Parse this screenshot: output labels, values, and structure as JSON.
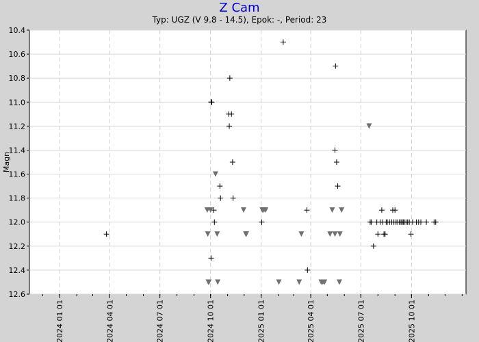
{
  "chart_data": {
    "type": "scatter",
    "title": "Z Cam",
    "subtitle": "Typ: UGZ (V 9.8 - 14.5), Epok: -, Period: 23",
    "ylabel": "Magn",
    "xlabel": "",
    "y_inverted": true,
    "ylim": [
      10.4,
      12.6
    ],
    "xlim": [
      "2023-11-07",
      "2026-01-08"
    ],
    "grid": true,
    "y_ticks": [
      "10.4",
      "10.6",
      "10.8",
      "11.0",
      "11.2",
      "11.4",
      "11.6",
      "11.8",
      "12.0",
      "12.2",
      "12.4",
      "12.6"
    ],
    "x_ticks": [
      {
        "date": "2024-01-01",
        "label": "2024 01 01"
      },
      {
        "date": "2024-04-01",
        "label": "2024 04 01"
      },
      {
        "date": "2024-07-01",
        "label": "2024 07 01"
      },
      {
        "date": "2024-10-01",
        "label": "2024 10 01"
      },
      {
        "date": "2025-01-01",
        "label": "2025 01 01"
      },
      {
        "date": "2025-04-01",
        "label": "2025 04 01"
      },
      {
        "date": "2025-07-01",
        "label": "2025 07 01"
      },
      {
        "date": "2025-10-01",
        "label": "2025 10 01"
      }
    ],
    "series": [
      {
        "marker": "plus",
        "color": "#000000",
        "points": [
          [
            "2024-03-26",
            12.1
          ],
          [
            "2024-10-02",
            11.0
          ],
          [
            "2024-10-03",
            11.0
          ],
          [
            "2024-10-02",
            12.3
          ],
          [
            "2024-10-07",
            11.9
          ],
          [
            "2024-10-08",
            12.0
          ],
          [
            "2024-10-18",
            11.7
          ],
          [
            "2024-10-19",
            11.8
          ],
          [
            "2024-11-03",
            11.1
          ],
          [
            "2024-11-04",
            11.2
          ],
          [
            "2024-11-05",
            10.8
          ],
          [
            "2024-11-08",
            11.1
          ],
          [
            "2024-11-10",
            11.5
          ],
          [
            "2024-11-11",
            11.8
          ],
          [
            "2025-01-02",
            12.0
          ],
          [
            "2025-02-10",
            10.5
          ],
          [
            "2025-03-25",
            11.9
          ],
          [
            "2025-03-26",
            12.4
          ],
          [
            "2025-05-15",
            11.4
          ],
          [
            "2025-05-16",
            10.7
          ],
          [
            "2025-05-18",
            11.5
          ],
          [
            "2025-05-20",
            11.7
          ],
          [
            "2025-07-18",
            12.0
          ],
          [
            "2025-07-20",
            12.0
          ],
          [
            "2025-07-24",
            12.2
          ],
          [
            "2025-07-30",
            12.0
          ],
          [
            "2025-08-01",
            12.1
          ],
          [
            "2025-08-05",
            12.0
          ],
          [
            "2025-08-08",
            11.9
          ],
          [
            "2025-08-10",
            12.0
          ],
          [
            "2025-08-12",
            12.1
          ],
          [
            "2025-08-14",
            12.1
          ],
          [
            "2025-08-16",
            12.0
          ],
          [
            "2025-08-18",
            12.0
          ],
          [
            "2025-08-22",
            12.0
          ],
          [
            "2025-08-26",
            12.0
          ],
          [
            "2025-08-28",
            11.9
          ],
          [
            "2025-08-30",
            12.0
          ],
          [
            "2025-09-01",
            11.9
          ],
          [
            "2025-09-03",
            12.0
          ],
          [
            "2025-09-06",
            12.0
          ],
          [
            "2025-09-09",
            12.0
          ],
          [
            "2025-09-12",
            12.0
          ],
          [
            "2025-09-14",
            12.0
          ],
          [
            "2025-09-16",
            12.0
          ],
          [
            "2025-09-18",
            12.0
          ],
          [
            "2025-09-21",
            12.0
          ],
          [
            "2025-09-24",
            12.0
          ],
          [
            "2025-09-27",
            12.0
          ],
          [
            "2025-09-30",
            12.1
          ],
          [
            "2025-10-03",
            12.0
          ],
          [
            "2025-10-10",
            12.0
          ],
          [
            "2025-10-14",
            12.0
          ],
          [
            "2025-10-18",
            12.0
          ],
          [
            "2025-10-28",
            12.0
          ],
          [
            "2025-11-11",
            12.0
          ],
          [
            "2025-11-14",
            12.0
          ]
        ]
      },
      {
        "marker": "triangle-down",
        "color": "#707070",
        "points": [
          [
            "2024-09-25",
            11.9
          ],
          [
            "2024-09-26",
            12.1
          ],
          [
            "2024-09-27",
            12.5
          ],
          [
            "2024-09-28",
            12.5
          ],
          [
            "2024-10-01",
            11.9
          ],
          [
            "2024-10-10",
            11.6
          ],
          [
            "2024-10-13",
            12.1
          ],
          [
            "2024-10-14",
            12.5
          ],
          [
            "2024-11-30",
            11.9
          ],
          [
            "2024-12-04",
            12.1
          ],
          [
            "2024-12-05",
            12.1
          ],
          [
            "2025-01-03",
            11.9
          ],
          [
            "2025-01-06",
            11.9
          ],
          [
            "2025-01-09",
            11.9
          ],
          [
            "2025-02-02",
            12.5
          ],
          [
            "2025-03-11",
            12.5
          ],
          [
            "2025-03-15",
            12.1
          ],
          [
            "2025-04-20",
            12.5
          ],
          [
            "2025-04-23",
            12.5
          ],
          [
            "2025-04-26",
            12.5
          ],
          [
            "2025-05-06",
            12.1
          ],
          [
            "2025-05-10",
            11.9
          ],
          [
            "2025-05-15",
            12.1
          ],
          [
            "2025-05-23",
            12.5
          ],
          [
            "2025-05-24",
            12.1
          ],
          [
            "2025-05-27",
            11.9
          ],
          [
            "2025-07-16",
            11.2
          ]
        ]
      }
    ]
  }
}
